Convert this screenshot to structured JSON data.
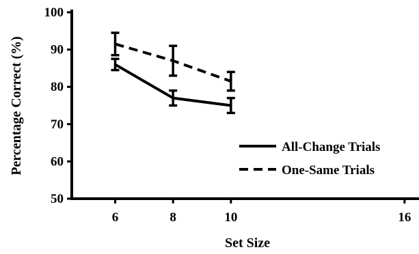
{
  "chart_data": {
    "type": "line",
    "xlabel": "Set Size",
    "ylabel": "Percentage Correct (%)",
    "x_ticks": [
      6,
      8,
      10,
      16
    ],
    "y_ticks": [
      50,
      60,
      70,
      80,
      90,
      100
    ],
    "xlim": [
      4.5,
      16.5
    ],
    "ylim": [
      50,
      100
    ],
    "grid": false,
    "legend_position": "right",
    "series": [
      {
        "name": "All-Change Trials",
        "style": "solid",
        "color": "#000000",
        "x": [
          6,
          8,
          10
        ],
        "y": [
          86,
          77,
          75
        ],
        "error": [
          1.5,
          2,
          2
        ]
      },
      {
        "name": "One-Same Trials",
        "style": "dashed",
        "color": "#000000",
        "x": [
          6,
          8,
          10
        ],
        "y": [
          91.5,
          87,
          81.5
        ],
        "error": [
          3,
          4,
          2.5
        ]
      }
    ]
  }
}
